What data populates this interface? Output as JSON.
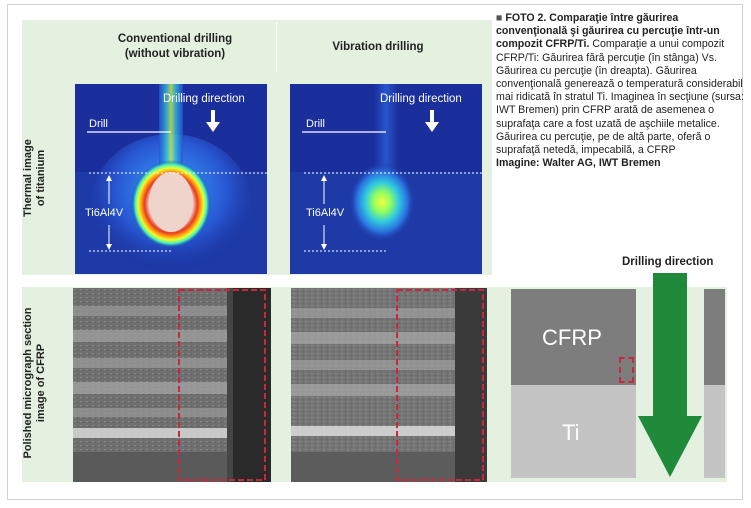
{
  "headers": {
    "conventional": "Conventional drilling\n(without vibration)",
    "vibration": "Vibration drilling"
  },
  "row_labels": {
    "thermal": "Thermal image\nof titanium",
    "micrograph": "Polished micrograph section\nimage of CFRP"
  },
  "thermal": {
    "drilling_direction": "Drilling direction",
    "drill": "Drill",
    "material": "Ti6Al4V"
  },
  "diagram": {
    "drilling_direction": "Drilling direction",
    "cfrp": "CFRP",
    "ti": "Ti"
  },
  "caption": {
    "bullet": "■",
    "title": "FOTO 2. Comparaţie între găurirea convenţională şi găurirea cu percuţie într-un compozit CFRP/Ti.",
    "body": " Comparaţie a unui compozit CFRP/Ti: Găurirea fără percuţie (în stânga) Vs. Găurirea cu percuţie (în dreapta). Găurirea convenţională generează o temperatură considerabil mai ridicată în stratul Ti. Imaginea în secţiune (sursa: IWT Bremen) prin CFRP arată de asemenea o suprafaţa care a fost uzată de aşchiile metalice. Găurirea cu percuţie, pe de altă parte, oferă o suprafaţă netedă, impecabilă, a CFRP",
    "credit": "Imagine: Walter AG, IWT Bremen"
  },
  "colors": {
    "green_bg": "#e4f1e1",
    "thermal_blue": "#1b2f9c",
    "arrow_green": "#1f8a3a",
    "dashed_red": "#c8283c"
  }
}
